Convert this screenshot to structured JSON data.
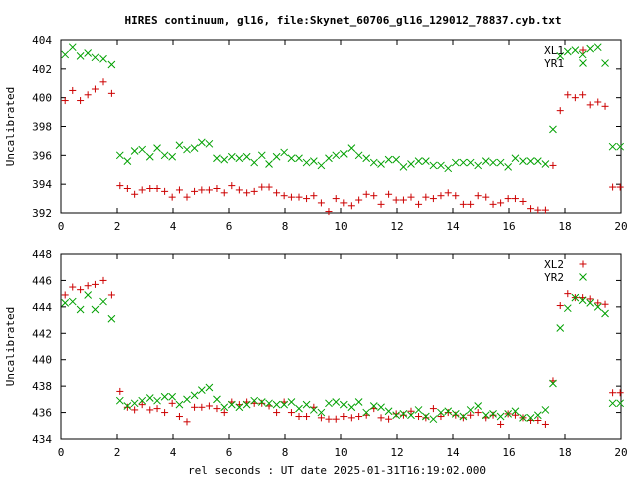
{
  "title": "HIRES continuum, gl16, file:Skynet_60706_gl16_129012_78837.cyb.txt",
  "xlabel": "rel seconds : UT date 2025-01-31T16:19:02.000",
  "chart_data": [
    {
      "type": "scatter",
      "ylabel": "Uncalibrated",
      "xlim": [
        0,
        20
      ],
      "ylim": [
        392,
        404
      ],
      "xticks": [
        0,
        2,
        4,
        6,
        8,
        10,
        12,
        14,
        16,
        18,
        20
      ],
      "yticks": [
        392,
        394,
        396,
        398,
        400,
        402,
        404
      ],
      "legend_position": "top-right",
      "series": [
        {
          "name": "XL1",
          "marker": "plus",
          "color": "#cc0000",
          "x": [
            0.15,
            0.42,
            0.7,
            0.97,
            1.23,
            1.5,
            1.8,
            2.1,
            2.37,
            2.63,
            2.9,
            3.17,
            3.43,
            3.7,
            3.97,
            4.23,
            4.5,
            4.77,
            5.03,
            5.3,
            5.57,
            5.83,
            6.1,
            6.37,
            6.63,
            6.9,
            7.17,
            7.43,
            7.7,
            7.97,
            8.23,
            8.5,
            8.77,
            9.03,
            9.3,
            9.57,
            9.83,
            10.1,
            10.37,
            10.63,
            10.9,
            11.17,
            11.43,
            11.7,
            11.97,
            12.23,
            12.5,
            12.77,
            13.03,
            13.3,
            13.57,
            13.83,
            14.1,
            14.37,
            14.63,
            14.9,
            15.17,
            15.43,
            15.7,
            15.97,
            16.23,
            16.5,
            16.77,
            17.03,
            17.3,
            17.57,
            17.83,
            18.1,
            18.37,
            18.63,
            18.9,
            19.17,
            19.43,
            19.7,
            19.97
          ],
          "y": [
            399.8,
            400.5,
            399.8,
            400.2,
            400.6,
            401.1,
            400.3,
            393.9,
            393.7,
            393.3,
            393.6,
            393.7,
            393.7,
            393.5,
            393.1,
            393.6,
            393.1,
            393.5,
            393.6,
            393.6,
            393.7,
            393.4,
            393.9,
            393.6,
            393.4,
            393.5,
            393.8,
            393.8,
            393.4,
            393.2,
            393.1,
            393.1,
            393.0,
            393.2,
            392.7,
            392.1,
            393.0,
            392.7,
            392.5,
            392.9,
            393.3,
            393.2,
            392.6,
            393.3,
            392.9,
            392.9,
            393.1,
            392.6,
            393.1,
            393.0,
            393.2,
            393.4,
            393.2,
            392.6,
            392.6,
            393.2,
            393.1,
            392.6,
            392.7,
            393.0,
            393.0,
            392.8,
            392.3,
            392.2,
            392.2,
            395.3,
            399.1,
            400.2,
            400.0,
            400.2,
            399.5,
            399.7,
            399.4,
            393.8,
            393.8
          ]
        },
        {
          "name": "YR1",
          "marker": "cross",
          "color": "#00a000",
          "x": [
            0.15,
            0.42,
            0.7,
            0.97,
            1.23,
            1.5,
            1.8,
            2.1,
            2.37,
            2.63,
            2.9,
            3.17,
            3.43,
            3.7,
            3.97,
            4.23,
            4.5,
            4.77,
            5.03,
            5.3,
            5.57,
            5.83,
            6.1,
            6.37,
            6.63,
            6.9,
            7.17,
            7.43,
            7.7,
            7.97,
            8.23,
            8.5,
            8.77,
            9.03,
            9.3,
            9.57,
            9.83,
            10.1,
            10.37,
            10.63,
            10.9,
            11.17,
            11.43,
            11.7,
            11.97,
            12.23,
            12.5,
            12.77,
            13.03,
            13.3,
            13.57,
            13.83,
            14.1,
            14.37,
            14.63,
            14.9,
            15.17,
            15.43,
            15.7,
            15.97,
            16.23,
            16.5,
            16.77,
            17.03,
            17.3,
            17.57,
            17.83,
            18.1,
            18.37,
            18.63,
            18.9,
            19.17,
            19.43,
            19.7,
            19.97
          ],
          "y": [
            403.0,
            403.5,
            402.9,
            403.1,
            402.8,
            402.7,
            402.3,
            396.0,
            395.6,
            396.3,
            396.4,
            395.9,
            396.5,
            396.0,
            395.9,
            396.7,
            396.4,
            396.5,
            396.9,
            396.8,
            395.8,
            395.7,
            395.9,
            395.8,
            395.9,
            395.5,
            396.0,
            395.4,
            395.9,
            396.2,
            395.8,
            395.8,
            395.5,
            395.6,
            395.3,
            395.8,
            396.0,
            396.1,
            396.5,
            396.0,
            395.8,
            395.5,
            395.4,
            395.7,
            395.7,
            395.2,
            395.4,
            395.6,
            395.6,
            395.3,
            395.3,
            395.1,
            395.5,
            395.5,
            395.5,
            395.3,
            395.6,
            395.5,
            395.5,
            395.2,
            395.8,
            395.6,
            395.6,
            395.6,
            395.4,
            397.8,
            402.9,
            403.2,
            403.3,
            403.0,
            403.4,
            403.5,
            402.4,
            396.6,
            396.6
          ]
        }
      ]
    },
    {
      "type": "scatter",
      "ylabel": "Uncalibrated",
      "xlim": [
        0,
        20
      ],
      "ylim": [
        434,
        448
      ],
      "xticks": [
        0,
        2,
        4,
        6,
        8,
        10,
        12,
        14,
        16,
        18,
        20
      ],
      "yticks": [
        434,
        436,
        438,
        440,
        442,
        444,
        446,
        448
      ],
      "legend_position": "top-right",
      "series": [
        {
          "name": "XL2",
          "marker": "plus",
          "color": "#cc0000",
          "x": [
            0.15,
            0.42,
            0.7,
            0.97,
            1.23,
            1.5,
            1.8,
            2.1,
            2.37,
            2.63,
            2.9,
            3.17,
            3.43,
            3.7,
            3.97,
            4.23,
            4.5,
            4.77,
            5.03,
            5.3,
            5.57,
            5.83,
            6.1,
            6.37,
            6.63,
            6.9,
            7.17,
            7.43,
            7.7,
            7.97,
            8.23,
            8.5,
            8.77,
            9.03,
            9.3,
            9.57,
            9.83,
            10.1,
            10.37,
            10.63,
            10.9,
            11.17,
            11.43,
            11.7,
            11.97,
            12.23,
            12.5,
            12.77,
            13.03,
            13.3,
            13.57,
            13.83,
            14.1,
            14.37,
            14.63,
            14.9,
            15.17,
            15.43,
            15.7,
            15.97,
            16.23,
            16.5,
            16.77,
            17.03,
            17.3,
            17.57,
            17.83,
            18.1,
            18.37,
            18.63,
            18.9,
            19.17,
            19.43,
            19.7,
            19.97
          ],
          "y": [
            444.9,
            445.5,
            445.3,
            445.6,
            445.7,
            446.0,
            444.9,
            437.6,
            436.4,
            436.2,
            436.6,
            436.2,
            436.3,
            436.0,
            436.7,
            435.7,
            435.3,
            436.4,
            436.4,
            436.5,
            436.3,
            436.0,
            436.8,
            436.6,
            436.8,
            436.7,
            436.7,
            436.5,
            436.0,
            436.8,
            436.0,
            435.7,
            435.7,
            436.4,
            435.6,
            435.5,
            435.5,
            435.7,
            435.6,
            435.7,
            435.8,
            436.3,
            435.6,
            435.5,
            435.9,
            435.8,
            436.1,
            435.7,
            435.6,
            436.3,
            435.7,
            436.0,
            435.8,
            435.6,
            435.8,
            436.0,
            435.6,
            435.8,
            435.1,
            435.9,
            435.8,
            435.6,
            435.4,
            435.4,
            435.1,
            438.4,
            444.1,
            445.0,
            444.7,
            444.7,
            444.6,
            444.3,
            444.2,
            437.5,
            437.5
          ]
        },
        {
          "name": "YR2",
          "marker": "cross",
          "color": "#00a000",
          "x": [
            0.15,
            0.42,
            0.7,
            0.97,
            1.23,
            1.5,
            1.8,
            2.1,
            2.37,
            2.63,
            2.9,
            3.17,
            3.43,
            3.7,
            3.97,
            4.23,
            4.5,
            4.77,
            5.03,
            5.3,
            5.57,
            5.83,
            6.1,
            6.37,
            6.63,
            6.9,
            7.17,
            7.43,
            7.7,
            7.97,
            8.23,
            8.5,
            8.77,
            9.03,
            9.3,
            9.57,
            9.83,
            10.1,
            10.37,
            10.63,
            10.9,
            11.17,
            11.43,
            11.7,
            11.97,
            12.23,
            12.5,
            12.77,
            13.03,
            13.3,
            13.57,
            13.83,
            14.1,
            14.37,
            14.63,
            14.9,
            15.17,
            15.43,
            15.7,
            15.97,
            16.23,
            16.5,
            16.77,
            17.03,
            17.3,
            17.57,
            17.83,
            18.1,
            18.37,
            18.63,
            18.9,
            19.17,
            19.43,
            19.7,
            19.97
          ],
          "y": [
            444.3,
            444.4,
            443.8,
            444.9,
            443.8,
            444.4,
            443.1,
            436.9,
            436.5,
            436.7,
            436.9,
            437.1,
            436.9,
            437.2,
            437.2,
            436.6,
            437.0,
            437.3,
            437.7,
            437.9,
            437.0,
            436.4,
            436.6,
            436.4,
            436.6,
            436.9,
            436.8,
            436.7,
            436.6,
            436.6,
            436.8,
            436.3,
            436.6,
            436.2,
            436.0,
            436.7,
            436.8,
            436.6,
            436.4,
            436.8,
            436.0,
            436.5,
            436.4,
            436.1,
            435.8,
            435.9,
            435.8,
            436.2,
            435.7,
            435.5,
            436.0,
            436.1,
            435.9,
            435.7,
            436.2,
            436.5,
            435.8,
            435.9,
            435.7,
            435.9,
            436.1,
            435.6,
            435.6,
            435.8,
            436.2,
            438.2,
            442.4,
            443.9,
            444.7,
            444.5,
            444.3,
            444.0,
            443.5,
            436.7,
            436.7
          ]
        }
      ]
    }
  ]
}
